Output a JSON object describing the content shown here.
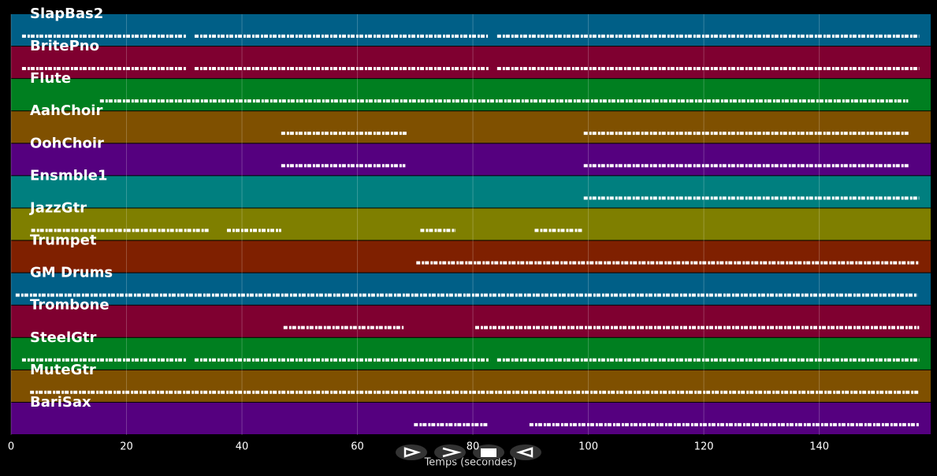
{
  "chart_data": {
    "type": "timeline",
    "xlabel": "Temps (secondes)",
    "xlim": [
      0,
      159.3
    ],
    "xticks": [
      0,
      20,
      40,
      60,
      80,
      100,
      120,
      140
    ],
    "grid": true,
    "series": [
      {
        "name": "SlapBas2",
        "color": "#005f87",
        "segments": [
          [
            1.9,
            30.3
          ],
          [
            31.8,
            82.6
          ],
          [
            84.2,
            157.3
          ]
        ]
      },
      {
        "name": "BritePno",
        "color": "#7f0030",
        "segments": [
          [
            1.9,
            30.4
          ],
          [
            31.8,
            82.7
          ],
          [
            84.2,
            157.3
          ]
        ]
      },
      {
        "name": "Flute",
        "color": "#007f20",
        "segments": [
          [
            15.4,
            155.4
          ]
        ]
      },
      {
        "name": "AahChoir",
        "color": "#7f5000",
        "segments": [
          [
            46.8,
            68.7
          ],
          [
            99.2,
            155.6
          ]
        ]
      },
      {
        "name": "OohChoir",
        "color": "#55007f",
        "segments": [
          [
            46.8,
            68.3
          ],
          [
            99.2,
            155.6
          ]
        ]
      },
      {
        "name": "Ensmble1",
        "color": "#007f7f",
        "segments": [
          [
            99.2,
            157.3
          ]
        ]
      },
      {
        "name": "JazzGtr",
        "color": "#7f7f00",
        "segments": [
          [
            3.5,
            34.3
          ],
          [
            37.4,
            46.8
          ],
          [
            70.9,
            77.0
          ],
          [
            90.7,
            99.0
          ]
        ]
      },
      {
        "name": "Trumpet",
        "color": "#7f2000",
        "segments": [
          [
            70.2,
            157.3
          ]
        ]
      },
      {
        "name": "GM Drums",
        "color": "#005f87",
        "segments": [
          [
            0.8,
            157.0
          ]
        ]
      },
      {
        "name": "Trombone",
        "color": "#7f0030",
        "segments": [
          [
            47.2,
            68.0
          ],
          [
            80.4,
            157.3
          ]
        ]
      },
      {
        "name": "SteelGtr",
        "color": "#007f20",
        "segments": [
          [
            1.9,
            30.3
          ],
          [
            31.8,
            82.7
          ],
          [
            84.2,
            157.3
          ]
        ]
      },
      {
        "name": "MuteGtr",
        "color": "#7f5000",
        "segments": [
          [
            3.3,
            157.3
          ]
        ]
      },
      {
        "name": "BariSax",
        "color": "#55007f",
        "segments": [
          [
            69.8,
            82.7
          ],
          [
            89.8,
            157.3
          ]
        ]
      }
    ]
  }
}
